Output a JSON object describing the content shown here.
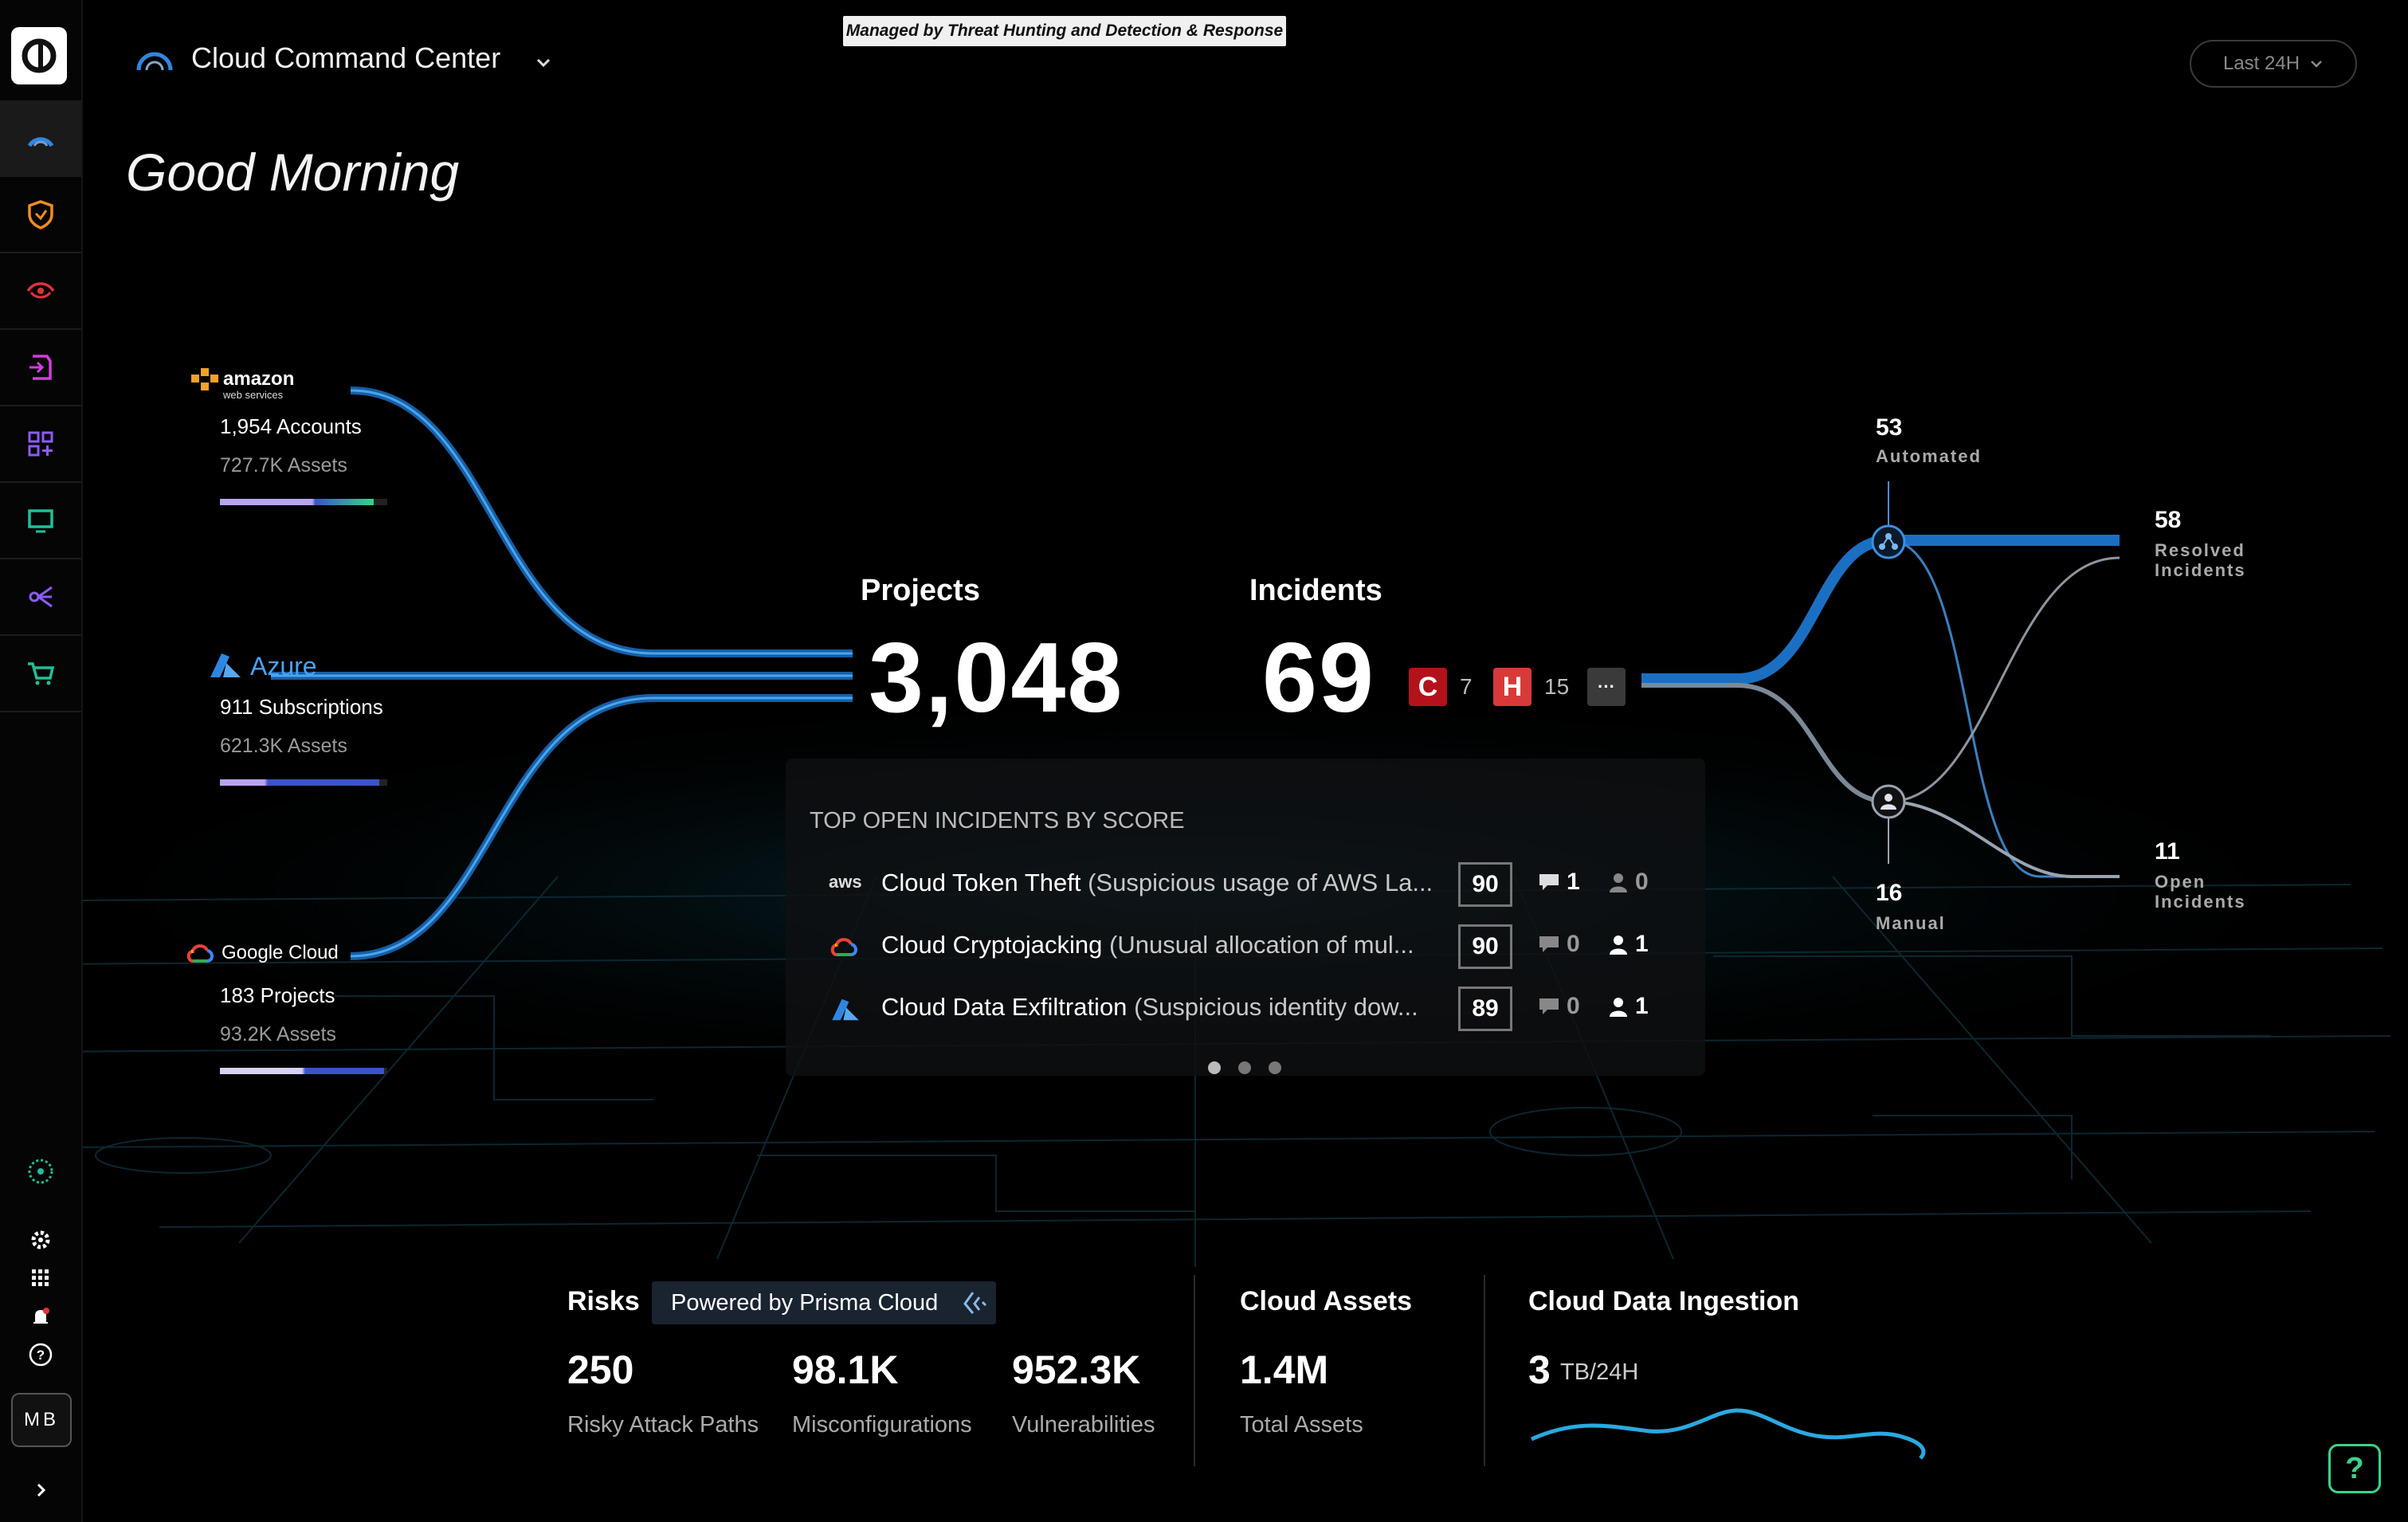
{
  "header": {
    "managed_banner": "Managed by Threat Hunting and Detection & Response",
    "app_title": "Cloud Command Center",
    "time_range": "Last 24H",
    "greeting": "Good Morning"
  },
  "sidebar": {
    "items": [
      {
        "icon": "command-center-icon"
      },
      {
        "icon": "shield-icon"
      },
      {
        "icon": "eye-icon"
      },
      {
        "icon": "document-icon"
      },
      {
        "icon": "dashboard-grid-icon"
      },
      {
        "icon": "monitor-icon"
      },
      {
        "icon": "network-icon"
      },
      {
        "icon": "cart-icon"
      }
    ],
    "avatar": "MB"
  },
  "providers": [
    {
      "name": "amazon web services",
      "logo_text": "amazon",
      "logo_sub": "web services",
      "accounts": "1,954 Accounts",
      "assets": "727.7K Assets",
      "bar_fill": 0.92
    },
    {
      "name": "Azure",
      "logo_text": "Azure",
      "accounts": "911 Subscriptions",
      "assets": "621.3K Assets",
      "bar_fill": 0.95
    },
    {
      "name": "Google Cloud",
      "logo_text": "Google Cloud",
      "accounts": "183 Projects",
      "assets": "93.2K Assets",
      "bar_fill": 0.98
    }
  ],
  "summary": {
    "projects_label": "Projects",
    "projects_value": "3,048",
    "incidents_label": "Incidents",
    "incidents_value": "69",
    "critical_label": "C",
    "critical_count": "7",
    "high_label": "H",
    "high_count": "15",
    "more_label": "···"
  },
  "top_incidents": {
    "title": "TOP OPEN INCIDENTS BY SCORE",
    "rows": [
      {
        "provider": "aws",
        "name": "Cloud Token Theft",
        "desc": "(Suspicious usage of AWS La...",
        "score": "90",
        "comments": "1",
        "users": "0"
      },
      {
        "provider": "gcp",
        "name": "Cloud Cryptojacking",
        "desc": "(Unusual allocation of mul...",
        "score": "90",
        "comments": "0",
        "users": "1"
      },
      {
        "provider": "azure",
        "name": "Cloud Data Exfiltration",
        "desc": "(Suspicious identity dow...",
        "score": "89",
        "comments": "0",
        "users": "1"
      }
    ],
    "page_index": 1,
    "page_count": 3
  },
  "flow": {
    "automated_value": "53",
    "automated_label": "Automated",
    "manual_value": "16",
    "manual_label": "Manual",
    "resolved_value": "58",
    "resolved_label_1": "Resolved",
    "resolved_label_2": "Incidents",
    "open_value": "11",
    "open_label_1": "Open",
    "open_label_2": "Incidents"
  },
  "risks": {
    "title": "Risks",
    "powered_by": "Powered by Prisma Cloud",
    "items": [
      {
        "value": "250",
        "label": "Risky Attack Paths"
      },
      {
        "value": "98.1K",
        "label": "Misconfigurations"
      },
      {
        "value": "952.3K",
        "label": "Vulnerabilities"
      }
    ]
  },
  "cloud_assets": {
    "title": "Cloud Assets",
    "value": "1.4M",
    "label": "Total Assets"
  },
  "ingestion": {
    "title": "Cloud Data Ingestion",
    "value": "3",
    "unit": "TB/24H"
  },
  "help_label": "?",
  "colors": {
    "accent_blue": "#1f7fd6",
    "critical": "#c0131b",
    "high": "#d83a3a",
    "help_green": "#39d38a"
  }
}
